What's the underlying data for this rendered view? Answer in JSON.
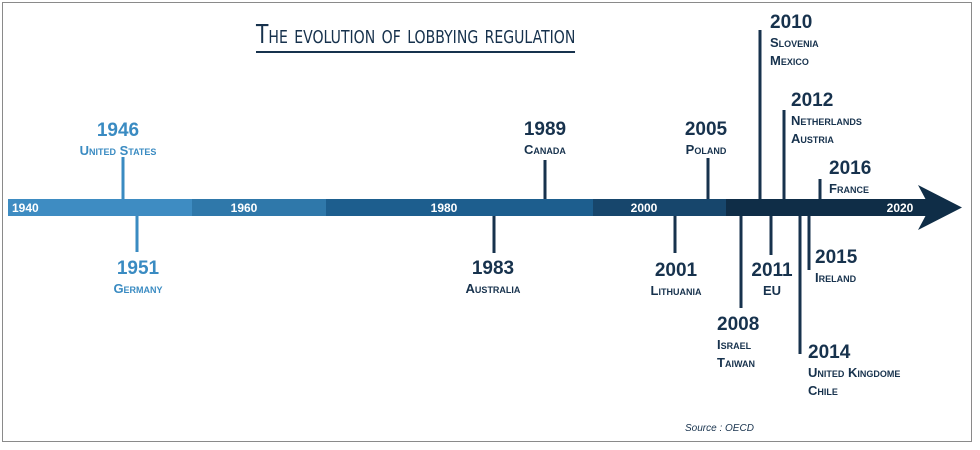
{
  "title": "The evolution of lobbying regulation",
  "source": "Source : OECD",
  "colors": {
    "c1940": "#3e8cc2",
    "c1960": "#2f78aa",
    "c1980": "#1d5e8e",
    "c2000": "#17466c",
    "c2010": "#0f2d47",
    "text_light": "#3a8bc2",
    "text_dark": "#17324d"
  },
  "axis": {
    "ticks": [
      "1940",
      "1960",
      "1980",
      "2000",
      "2020"
    ]
  },
  "events": [
    {
      "year": "1946",
      "countries": [
        "United States"
      ]
    },
    {
      "year": "1951",
      "countries": [
        "Germany"
      ]
    },
    {
      "year": "1983",
      "countries": [
        "Australia"
      ]
    },
    {
      "year": "1989",
      "countries": [
        "Canada"
      ]
    },
    {
      "year": "2001",
      "countries": [
        "Lithuania"
      ]
    },
    {
      "year": "2005",
      "countries": [
        "Poland"
      ]
    },
    {
      "year": "2008",
      "countries": [
        "Israel",
        "Taiwan"
      ]
    },
    {
      "year": "2010",
      "countries": [
        "Slovenia",
        "Mexico"
      ]
    },
    {
      "year": "2011",
      "countries": [
        "EU"
      ]
    },
    {
      "year": "2012",
      "countries": [
        "Netherlands",
        "Austria"
      ]
    },
    {
      "year": "2014",
      "countries": [
        "United Kingdome",
        "Chile"
      ]
    },
    {
      "year": "2015",
      "countries": [
        "Ireland"
      ]
    },
    {
      "year": "2016",
      "countries": [
        "France"
      ]
    }
  ]
}
